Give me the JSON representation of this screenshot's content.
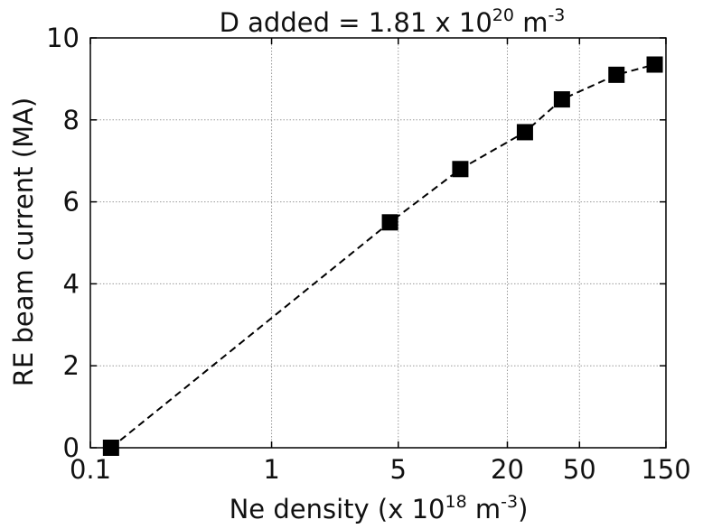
{
  "chart_data": {
    "type": "line",
    "title": {
      "prefix": "D added = 1.81 x 10",
      "exponent": "20",
      "unit": " m",
      "unit_exponent": "-3"
    },
    "xlabel": {
      "prefix": "Ne density (x 10",
      "exponent": "18",
      "unit": " m",
      "unit_exponent": "-3",
      "suffix": ")"
    },
    "ylabel": "RE beam current (MA)",
    "x_scale": "log",
    "xlim": [
      0.1,
      150
    ],
    "ylim": [
      0,
      10
    ],
    "x_ticks": [
      {
        "value": 0.1,
        "label": "0.1"
      },
      {
        "value": 1,
        "label": "1"
      },
      {
        "value": 5,
        "label": "5"
      },
      {
        "value": 20,
        "label": "20"
      },
      {
        "value": 50,
        "label": "50"
      },
      {
        "value": 150,
        "label": "150"
      }
    ],
    "x_grid": [
      1,
      5,
      20,
      50
    ],
    "y_ticks": [
      0,
      2,
      4,
      6,
      8,
      10
    ],
    "grid": true,
    "series": [
      {
        "marker": "square",
        "line_style": "dashed",
        "color": "#000000",
        "x": [
          0.13,
          4.5,
          11,
          25,
          40,
          80,
          130
        ],
        "y": [
          0,
          5.5,
          6.8,
          7.7,
          8.5,
          9.1,
          9.35
        ]
      }
    ]
  }
}
